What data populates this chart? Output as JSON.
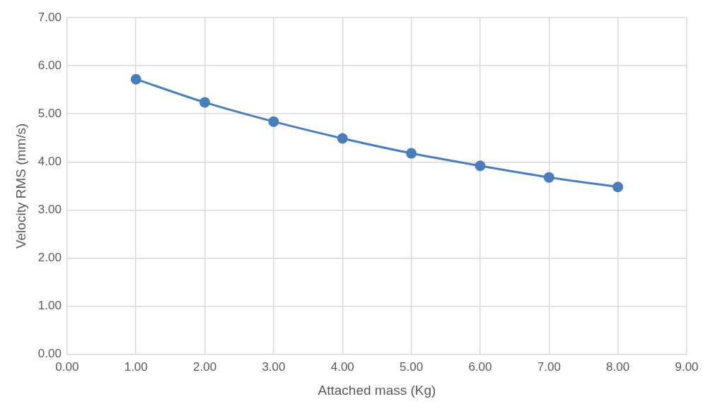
{
  "chart_data": {
    "type": "scatter",
    "xlabel": "Attached mass (Kg)",
    "ylabel": "Velocity RMS (mm/s)",
    "x": [
      1,
      2,
      3,
      4,
      5,
      6,
      7,
      8
    ],
    "series": [
      {
        "type": "line",
        "color": "#4a7ebb",
        "values": [
          5.72,
          5.24,
          4.84,
          4.49,
          4.18,
          3.92,
          3.68,
          3.48
        ]
      }
    ],
    "marker": "circle",
    "line_style": "solid",
    "grid": true,
    "legend": false,
    "xlim": [
      0,
      9
    ],
    "ylim": [
      0,
      7
    ],
    "xticks": [
      {
        "value": 0,
        "label": "0.00"
      },
      {
        "value": 1,
        "label": "1.00"
      },
      {
        "value": 2,
        "label": "2.00"
      },
      {
        "value": 3,
        "label": "3.00"
      },
      {
        "value": 4,
        "label": "4.00"
      },
      {
        "value": 5,
        "label": "5.00"
      },
      {
        "value": 6,
        "label": "6.00"
      },
      {
        "value": 7,
        "label": "7.00"
      },
      {
        "value": 8,
        "label": "8.00"
      },
      {
        "value": 9,
        "label": "9.00"
      }
    ],
    "yticks": [
      {
        "value": 0,
        "label": "0.00"
      },
      {
        "value": 1,
        "label": "1.00"
      },
      {
        "value": 2,
        "label": "2.00"
      },
      {
        "value": 3,
        "label": "3.00"
      },
      {
        "value": 4,
        "label": "4.00"
      },
      {
        "value": 5,
        "label": "5.00"
      },
      {
        "value": 6,
        "label": "6.00"
      },
      {
        "value": 7,
        "label": "7.00"
      }
    ]
  }
}
